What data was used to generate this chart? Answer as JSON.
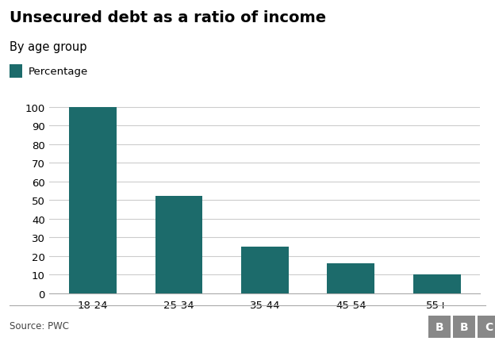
{
  "title": "Unsecured debt as a ratio of income",
  "subtitle": "By age group",
  "legend_label": "Percentage",
  "categories": [
    "18-24",
    "25-34",
    "35-44",
    "45-54",
    "55+"
  ],
  "values": [
    100,
    52,
    25,
    16,
    10
  ],
  "bar_color": "#1c6b6b",
  "background_color": "#ffffff",
  "ylim": [
    0,
    110
  ],
  "yticks": [
    0,
    10,
    20,
    30,
    40,
    50,
    60,
    70,
    80,
    90,
    100
  ],
  "source_text": "Source: PWC",
  "title_fontsize": 14,
  "subtitle_fontsize": 10.5,
  "tick_fontsize": 9.5,
  "source_fontsize": 8.5,
  "legend_fontsize": 9.5,
  "grid_color": "#cccccc",
  "spine_color": "#aaaaaa",
  "bbc_logo_text": "BBC",
  "bbc_box_color": "#888888",
  "bar_width": 0.55
}
